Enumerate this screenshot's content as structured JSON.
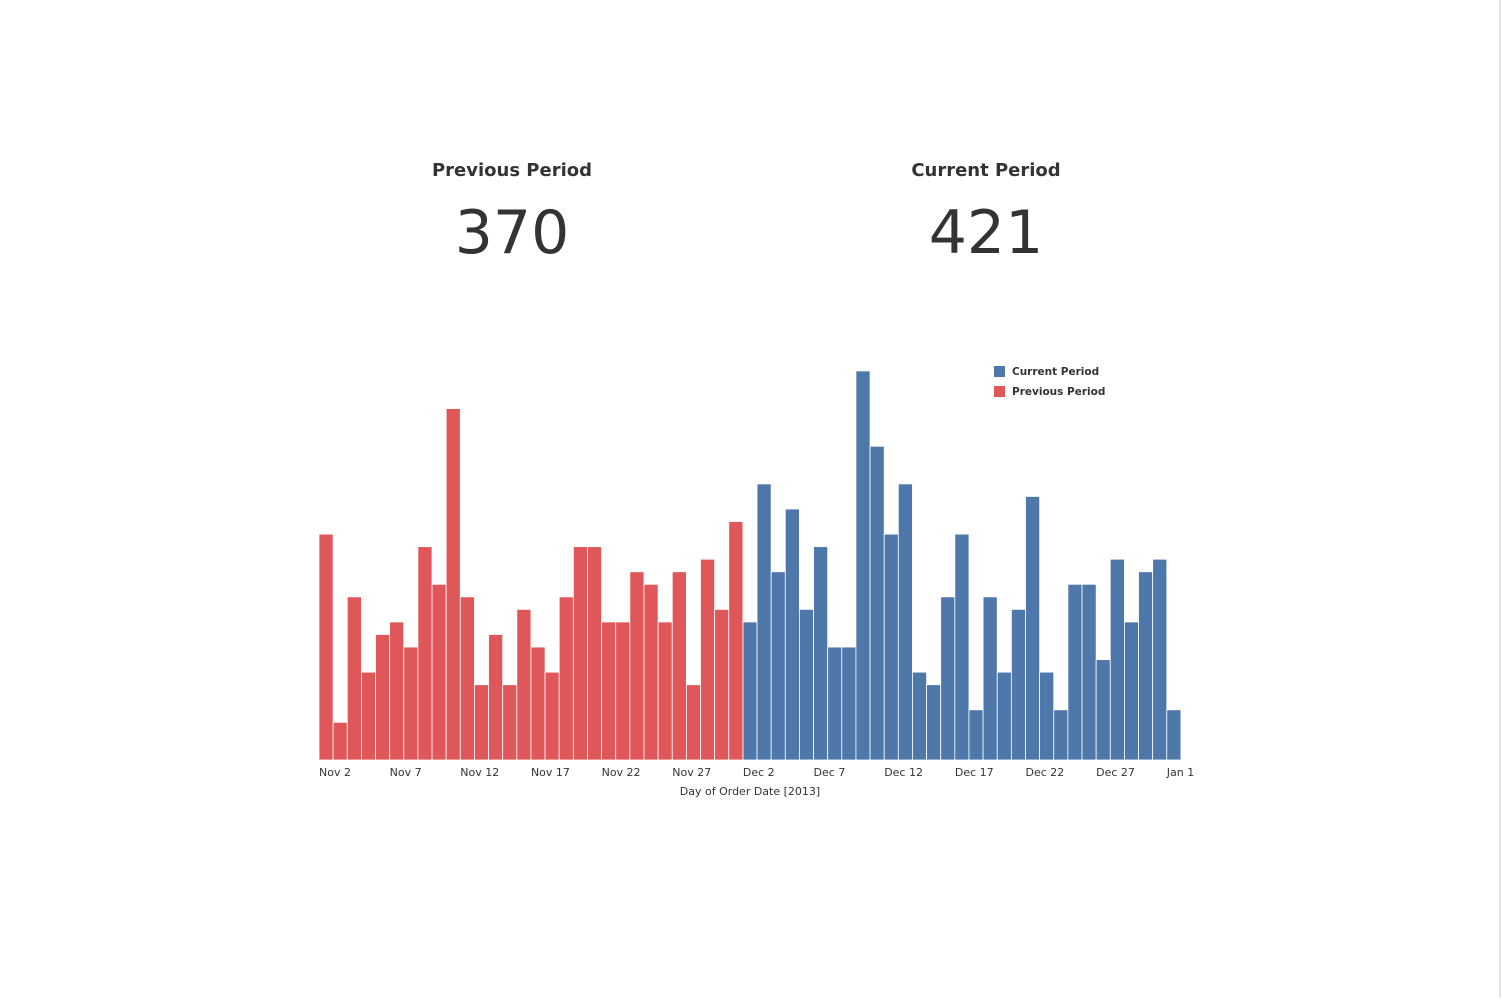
{
  "kpis": [
    {
      "label": "Previous Period",
      "value": 370
    },
    {
      "label": "Current Period",
      "value": 421
    }
  ],
  "chart_data": {
    "type": "bar",
    "x_label": "Day of Order Date [2013]",
    "legend": "top-right",
    "categories": [
      "Nov 2",
      null,
      null,
      null,
      null,
      "Nov 7",
      null,
      null,
      null,
      null,
      "Nov 12",
      null,
      null,
      null,
      null,
      "Nov 17",
      null,
      null,
      null,
      null,
      "Nov 22",
      null,
      null,
      null,
      null,
      "Nov 27",
      null,
      null,
      null,
      null,
      "Dec 2",
      null,
      null,
      null,
      null,
      "Dec 7",
      null,
      null,
      null,
      null,
      "Dec 12",
      null,
      null,
      null,
      null,
      "Dec 17",
      null,
      null,
      null,
      null,
      "Dec 22",
      null,
      null,
      null,
      null,
      "Dec 27",
      null,
      null,
      null,
      null,
      "Jan 1"
    ],
    "series": [
      {
        "name": "Current Period",
        "color": "#4e77aa",
        "values": [
          null,
          null,
          null,
          null,
          null,
          null,
          null,
          null,
          null,
          null,
          null,
          null,
          null,
          null,
          null,
          null,
          null,
          null,
          null,
          null,
          null,
          null,
          null,
          null,
          null,
          null,
          null,
          null,
          null,
          null,
          11,
          22,
          15,
          20,
          12,
          17,
          9,
          9,
          31,
          25,
          18,
          22,
          7,
          6,
          13,
          18,
          4,
          13,
          7,
          12,
          21,
          7,
          4,
          14,
          14,
          8,
          16,
          11,
          15,
          16,
          4
        ]
      },
      {
        "name": "Previous Period",
        "color": "#e05759",
        "values": [
          18,
          3,
          13,
          7,
          10,
          11,
          9,
          17,
          14,
          28,
          13,
          6,
          10,
          6,
          12,
          9,
          7,
          13,
          17,
          17,
          11,
          11,
          15,
          14,
          11,
          15,
          6,
          16,
          12,
          19,
          null,
          null,
          null,
          null,
          null,
          null,
          null,
          null,
          null,
          null,
          null,
          null,
          null,
          null,
          null,
          null,
          null,
          null,
          null,
          null,
          null,
          null,
          null,
          null,
          null,
          null,
          null,
          null,
          null,
          null,
          null
        ]
      }
    ]
  }
}
